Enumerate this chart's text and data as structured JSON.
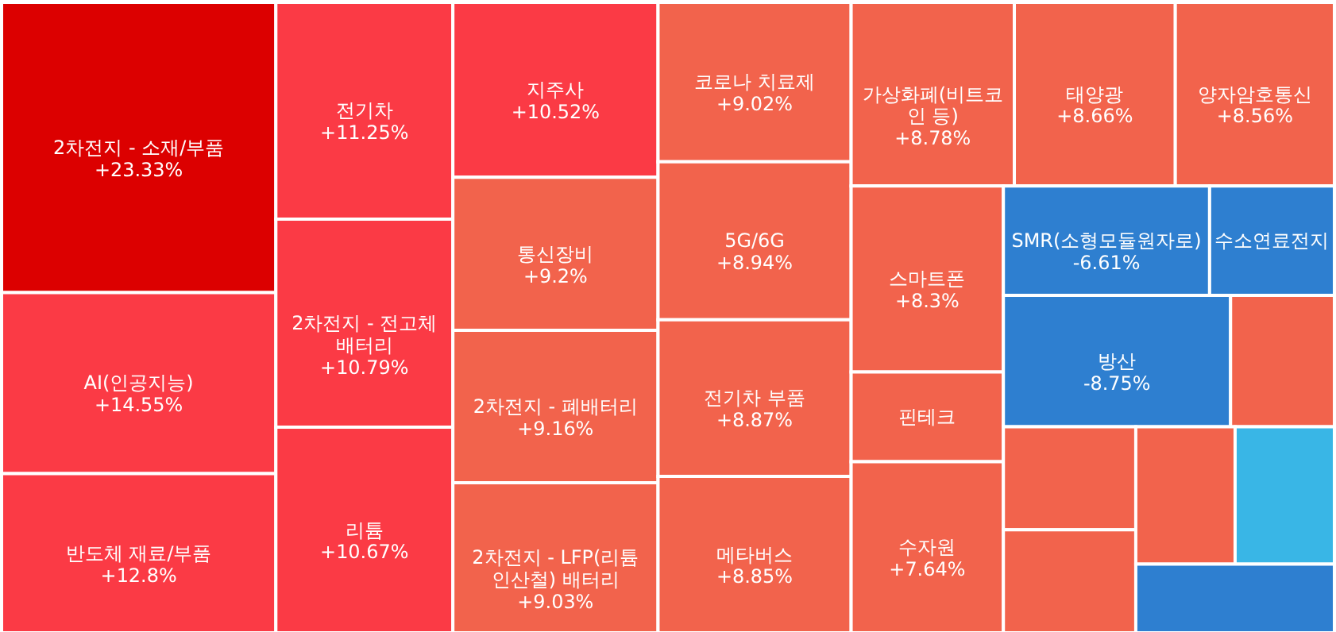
{
  "chart_data": {
    "type": "other",
    "categories": [
      "2차전지 - 소재/부품",
      "AI(인공지능)",
      "반도체 재료/부품",
      "전기차",
      "2차전지 - 전고체배터리",
      "리튬",
      "지주사",
      "통신장비",
      "2차전지 - 폐배터리",
      "2차전지 - LFP(리튬인산철) 배터리",
      "코로나 치료제",
      "5G/6G",
      "전기차 부품",
      "메타버스",
      "가상화폐(비트코인 등)",
      "태양광",
      "양자암호통신",
      "스마트폰",
      "핀테크",
      "수자원",
      "SMR(소형모듈원자로)",
      "수소연료전지",
      "방산",
      null,
      null,
      null,
      null,
      null,
      null
    ],
    "values": [
      23.33,
      14.55,
      12.8,
      11.25,
      10.79,
      10.67,
      10.52,
      9.2,
      9.16,
      9.03,
      9.02,
      8.94,
      8.87,
      8.85,
      8.78,
      8.66,
      8.56,
      8.3,
      null,
      7.64,
      -6.61,
      null,
      -8.75,
      null,
      null,
      null,
      null,
      null,
      null
    ],
    "value_labels": [
      "+23.33%",
      "+14.55%",
      "+12.8%",
      "+11.25%",
      "+10.79%",
      "+10.67%",
      "+10.52%",
      "+9.2%",
      "+9.16%",
      "+9.03%",
      "+9.02%",
      "+8.94%",
      "+8.87%",
      "+8.85%",
      "+8.78%",
      "+8.66%",
      "+8.56%",
      "+8.3%",
      null,
      "+7.64%",
      "-6.61%",
      null,
      "-8.75%",
      null,
      null,
      null,
      null,
      null,
      null
    ],
    "colors": [
      "#dc0000",
      "#fb3a45",
      "#fb3a45",
      "#fb3a45",
      "#fb3a45",
      "#fb3a45",
      "#fb3a45",
      "#f2634c",
      "#f2634c",
      "#f2634c",
      "#f2634c",
      "#f2634c",
      "#f2634c",
      "#f2634c",
      "#f2634c",
      "#f2634c",
      "#f2634c",
      "#f2634c",
      "#f2634c",
      "#f2634c",
      "#2e7fd0",
      "#2e7fd0",
      "#2e7fd0",
      "#f2634c",
      "#f2634c",
      "#f2634c",
      "#f2634c",
      "#39b6e6",
      "#2e7fd0"
    ]
  }
}
